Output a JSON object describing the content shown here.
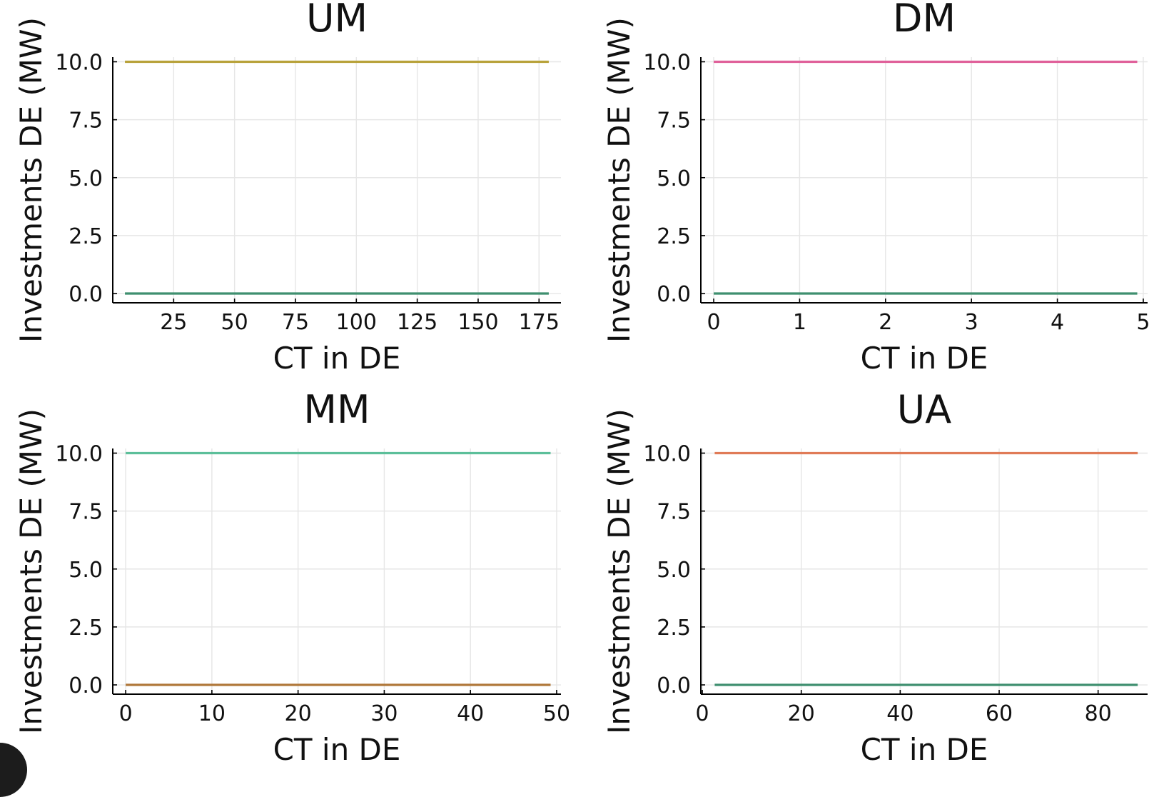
{
  "chart_data": [
    {
      "type": "line",
      "title": "UM",
      "xlabel": "CT in DE",
      "ylabel": "Investments DE (MW)",
      "xlim": [
        0,
        184
      ],
      "ylim": [
        -0.4,
        10.2
      ],
      "xticks": [
        25,
        50,
        75,
        100,
        125,
        150,
        175
      ],
      "xtick_labels": [
        "25",
        "50",
        "75",
        "100",
        "125",
        "150",
        "175"
      ],
      "yticks": [
        0,
        2.5,
        5,
        7.5,
        10
      ],
      "ytick_labels": [
        "0.0",
        "2.5",
        "5.0",
        "7.5",
        "10.0"
      ],
      "grid": true,
      "series": [
        {
          "x": [
            5,
            179
          ],
          "y": [
            10,
            10
          ],
          "color": "#b8a23a"
        },
        {
          "x": [
            5,
            179
          ],
          "y": [
            0,
            0
          ],
          "color": "#3f8f6f"
        }
      ]
    },
    {
      "type": "line",
      "title": "DM",
      "xlabel": "CT in DE",
      "ylabel": "Investments DE (MW)",
      "xlim": [
        -0.15,
        5.05
      ],
      "ylim": [
        -0.4,
        10.2
      ],
      "xticks": [
        0,
        1,
        2,
        3,
        4,
        5
      ],
      "xtick_labels": [
        "0",
        "1",
        "2",
        "3",
        "4",
        "5"
      ],
      "yticks": [
        0,
        2.5,
        5,
        7.5,
        10
      ],
      "ytick_labels": [
        "0.0",
        "2.5",
        "5.0",
        "7.5",
        "10.0"
      ],
      "grid": true,
      "series": [
        {
          "x": [
            0,
            4.93
          ],
          "y": [
            10,
            10
          ],
          "color": "#e0609a"
        },
        {
          "x": [
            0,
            4.93
          ],
          "y": [
            0,
            0
          ],
          "color": "#3f8f6f"
        }
      ]
    },
    {
      "type": "line",
      "title": "MM",
      "xlabel": "CT in DE",
      "ylabel": "Investments DE (MW)",
      "xlim": [
        -1.5,
        50.5
      ],
      "ylim": [
        -0.4,
        10.2
      ],
      "xticks": [
        0,
        10,
        20,
        30,
        40,
        50
      ],
      "xtick_labels": [
        "0",
        "10",
        "20",
        "30",
        "40",
        "50"
      ],
      "yticks": [
        0,
        2.5,
        5,
        7.5,
        10
      ],
      "ytick_labels": [
        "0.0",
        "2.5",
        "5.0",
        "7.5",
        "10.0"
      ],
      "grid": true,
      "series": [
        {
          "x": [
            0,
            49.3
          ],
          "y": [
            10,
            10
          ],
          "color": "#5cbf9a"
        },
        {
          "x": [
            0,
            49.3
          ],
          "y": [
            0,
            0
          ],
          "color": "#b0783a"
        }
      ]
    },
    {
      "type": "line",
      "title": "UA",
      "xlabel": "CT in DE",
      "ylabel": "Investments DE (MW)",
      "xlim": [
        -0.3,
        90
      ],
      "ylim": [
        -0.4,
        10.2
      ],
      "xticks": [
        0,
        20,
        40,
        60,
        80
      ],
      "xtick_labels": [
        "0",
        "20",
        "40",
        "60",
        "80"
      ],
      "yticks": [
        0,
        2.5,
        5,
        7.5,
        10
      ],
      "ytick_labels": [
        "0.0",
        "2.5",
        "5.0",
        "7.5",
        "10.0"
      ],
      "grid": true,
      "series": [
        {
          "x": [
            2.5,
            88
          ],
          "y": [
            10,
            10
          ],
          "color": "#e07b57"
        },
        {
          "x": [
            2.5,
            88
          ],
          "y": [
            0,
            0
          ],
          "color": "#3f8f6f"
        }
      ]
    }
  ]
}
